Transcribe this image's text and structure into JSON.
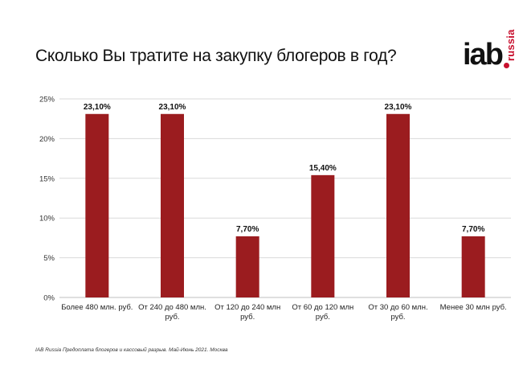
{
  "title": "Сколько Вы тратите на закупку блогеров в год?",
  "logo": {
    "main": "iab",
    "sub": "russia"
  },
  "footer": "IAB Russia Предоплата  блогеров  и кассовый разрыв. Май-Июнь  2021.  Москва",
  "colors": {
    "bar": "#9b1c1f",
    "grid": "#d9d9d9",
    "axis": "#bfbfbf",
    "text": "#111111"
  },
  "chart_data": {
    "type": "bar",
    "categories": [
      [
        "Более 480 млн.  руб."
      ],
      [
        "От 240 до 480 млн.",
        "руб."
      ],
      [
        "От 120 до 240 млн",
        "руб."
      ],
      [
        "От 60 до 120 млн",
        "руб."
      ],
      [
        "От 30 до 60 млн.",
        "руб."
      ],
      [
        "Менее 30 млн руб."
      ]
    ],
    "values": [
      23.1,
      23.1,
      7.7,
      15.4,
      23.1,
      7.7
    ],
    "data_labels": [
      "23,10%",
      "23,10%",
      "7,70%",
      "15,40%",
      "23,10%",
      "7,70%"
    ],
    "yticks": [
      0,
      5,
      10,
      15,
      20,
      25
    ],
    "ytick_labels": [
      "0%",
      "5%",
      "10%",
      "15%",
      "20%",
      "25%"
    ],
    "ylim": [
      0,
      25
    ],
    "grid": true,
    "legend": false
  }
}
